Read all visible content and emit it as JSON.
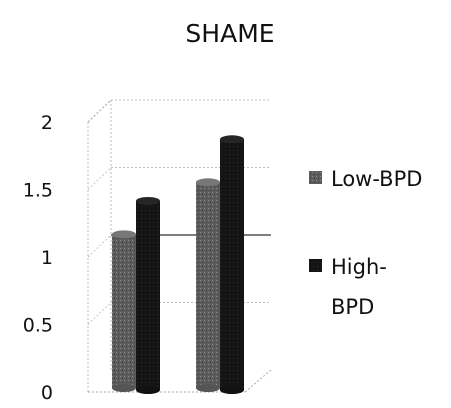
{
  "chart_data": {
    "type": "bar",
    "title": "SHAME",
    "categories": [
      "",
      ""
    ],
    "series": [
      {
        "name": "Low-BPD",
        "values": [
          1.18,
          1.56
        ],
        "color": "#5a5a5a"
      },
      {
        "name": "High-BPD",
        "values": [
          1.38,
          1.83
        ],
        "color": "#151515"
      }
    ],
    "legend_lines": [
      [
        "Low-BPD"
      ],
      [
        "High-",
        "BPD"
      ]
    ],
    "ylim": [
      0,
      2
    ],
    "yticks": [
      "0",
      "0.5",
      "1",
      "1.5",
      "2"
    ],
    "xlabel": "",
    "ylabel": "",
    "grid": true,
    "legend": "right",
    "style": "3d-cylinder"
  }
}
